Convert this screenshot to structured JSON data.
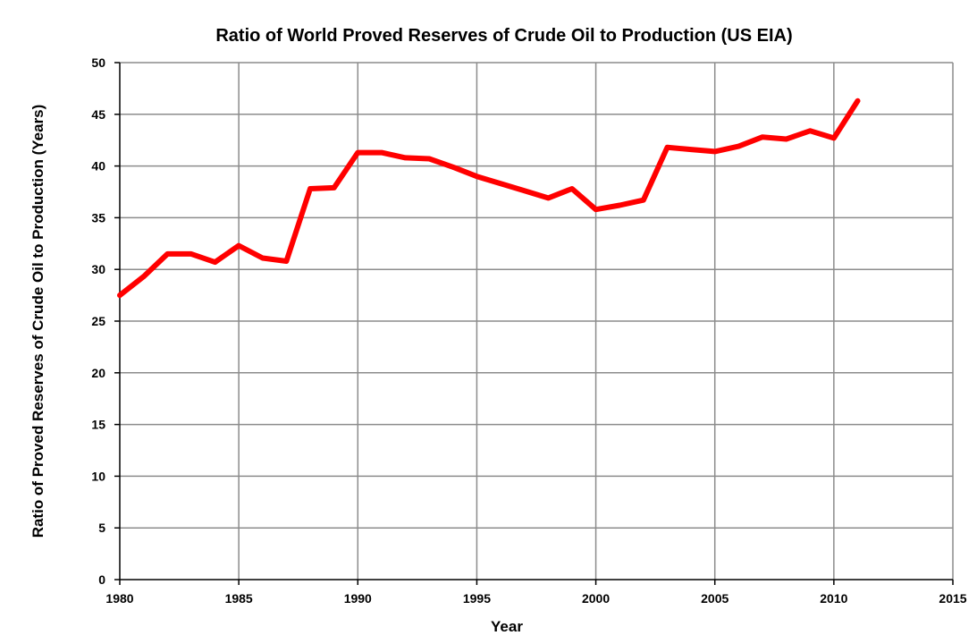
{
  "chart_data": {
    "type": "line",
    "title": "Ratio of World Proved Reserves of Crude Oil to Production (US EIA)",
    "xlabel": "Year",
    "ylabel": "Ratio of Proved Reserves of Crude Oil to Production (Years)",
    "xlim": [
      1980,
      2015
    ],
    "ylim": [
      0,
      50
    ],
    "x_ticks": [
      "1980",
      "1985",
      "1990",
      "1995",
      "2000",
      "2005",
      "2010",
      "2015"
    ],
    "y_ticks": [
      "0",
      "5",
      "10",
      "15",
      "20",
      "25",
      "30",
      "35",
      "40",
      "45",
      "50"
    ],
    "grid": true,
    "legend": "none",
    "series": [
      {
        "color": "#ff0000",
        "x": [
          1980,
          1981,
          1982,
          1983,
          1984,
          1985,
          1986,
          1987,
          1988,
          1989,
          1990,
          1991,
          1992,
          1993,
          1994,
          1995,
          1996,
          1997,
          1998,
          1999,
          2000,
          2001,
          2002,
          2003,
          2004,
          2005,
          2006,
          2007,
          2008,
          2009,
          2010,
          2011
        ],
        "y": [
          27.5,
          29.3,
          31.5,
          31.5,
          30.7,
          32.3,
          31.1,
          30.8,
          37.8,
          37.9,
          41.3,
          41.3,
          40.8,
          40.7,
          39.9,
          39.0,
          38.3,
          37.6,
          36.9,
          37.8,
          35.8,
          36.2,
          36.7,
          41.8,
          41.6,
          41.4,
          41.9,
          42.8,
          42.6,
          43.4,
          42.7,
          46.3
        ]
      }
    ],
    "colors": {
      "series_line": "#ff0000",
      "grid": "#8c8c8c",
      "axis": "#000000",
      "background": "#ffffff"
    }
  }
}
